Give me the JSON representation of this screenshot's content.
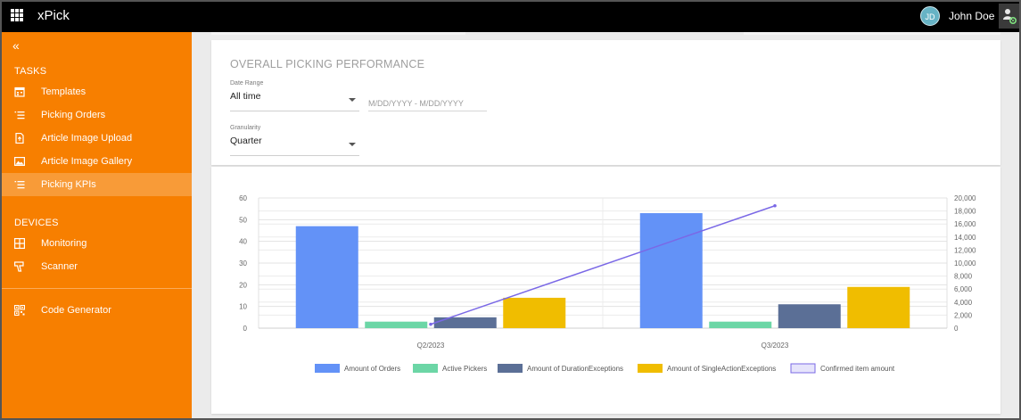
{
  "app": {
    "title": "xPick"
  },
  "user": {
    "initials": "JD",
    "name": "John Doe"
  },
  "sidebar": {
    "tasks_label": "TASKS",
    "devices_label": "DEVICES",
    "items": [
      {
        "label": "Templates",
        "icon": "calendar-icon"
      },
      {
        "label": "Picking Orders",
        "icon": "list-icon"
      },
      {
        "label": "Article Image Upload",
        "icon": "file-upload-icon"
      },
      {
        "label": "Article Image Gallery",
        "icon": "image-icon"
      },
      {
        "label": "Picking KPIs",
        "icon": "list-icon",
        "active": true
      }
    ],
    "device_items": [
      {
        "label": "Monitoring",
        "icon": "grid-icon"
      },
      {
        "label": "Scanner",
        "icon": "scanner-icon"
      }
    ],
    "tools": [
      {
        "label": "Code Generator",
        "icon": "qr-code-icon"
      }
    ]
  },
  "page": {
    "title": "OVERALL PICKING PERFORMANCE",
    "date_range": {
      "label": "Date Range",
      "value": "All time",
      "placeholder": "M/DD/YYYY - M/DD/YYYY"
    },
    "granularity": {
      "label": "Granularity",
      "value": "Quarter"
    }
  },
  "chart_data": {
    "type": "bar",
    "categories": [
      "Q2/2023",
      "Q3/2023"
    ],
    "series": [
      {
        "name": "Amount of Orders",
        "type": "bar",
        "axis": "left",
        "color": "#6392f7",
        "values": [
          47,
          53
        ]
      },
      {
        "name": "Active Pickers",
        "type": "bar",
        "axis": "left",
        "color": "#6cd6a6",
        "values": [
          3,
          3
        ]
      },
      {
        "name": "Amount of DurationExceptions",
        "type": "bar",
        "axis": "left",
        "color": "#5b6f96",
        "values": [
          5,
          11
        ]
      },
      {
        "name": "Amount of SingleActionExceptions",
        "type": "bar",
        "axis": "left",
        "color": "#f0bd00",
        "values": [
          14,
          19
        ]
      },
      {
        "name": "Confirmed item amount",
        "type": "line",
        "axis": "right",
        "color": "#7a68e6",
        "values": [
          600,
          18800
        ]
      }
    ],
    "left_axis": {
      "ylim": [
        0,
        60
      ],
      "ticks": [
        "0",
        "10",
        "20",
        "30",
        "40",
        "50",
        "60"
      ]
    },
    "right_axis": {
      "ylim": [
        0,
        20000
      ],
      "ticks": [
        "0",
        "2,000",
        "4,000",
        "6,000",
        "8,000",
        "10,000",
        "12,000",
        "14,000",
        "16,000",
        "18,000",
        "20,000"
      ]
    },
    "legend_position": "bottom",
    "grid": true
  }
}
